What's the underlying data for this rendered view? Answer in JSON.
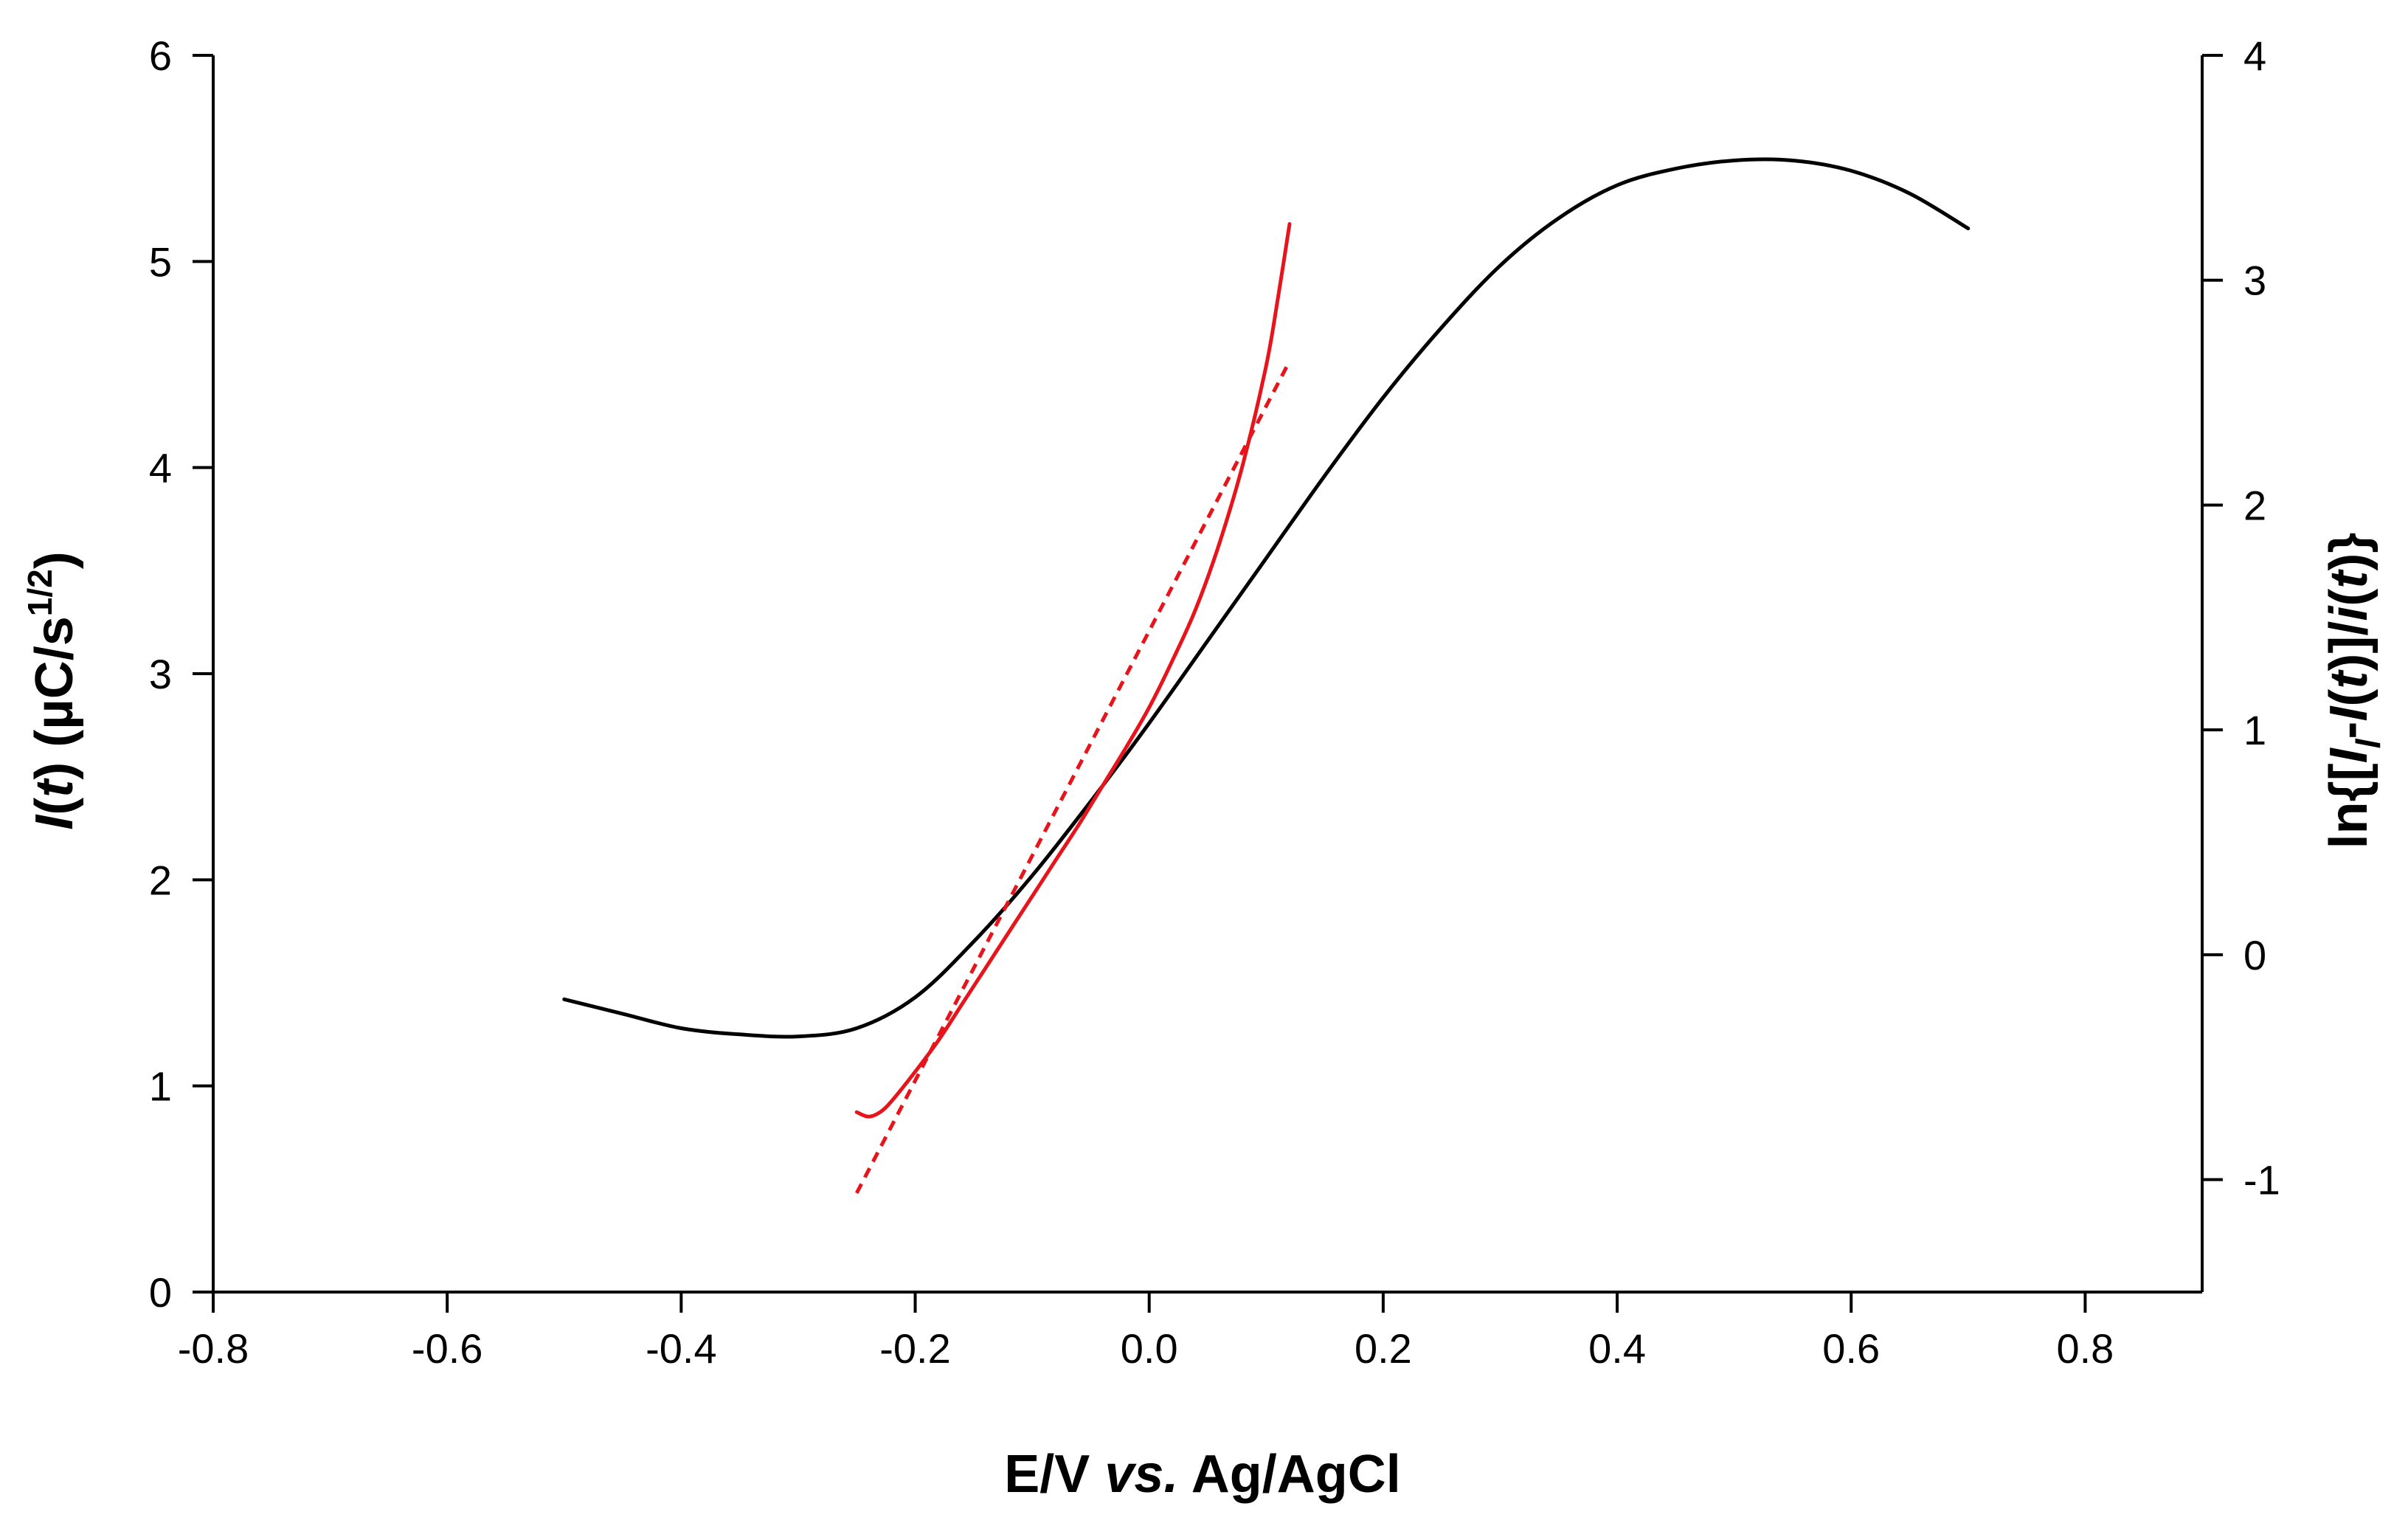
{
  "chart_data": {
    "type": "line",
    "xlabel": {
      "pre": "E/V ",
      "italic": "vs.",
      "post": " Ag/AgCl"
    },
    "ylabel_left": {
      "I": "I",
      "t": "t",
      "unit": " (µC/s",
      "sup": "1/2",
      "close": ")"
    },
    "ylabel_right": {
      "a": "ln{[",
      "b": "I",
      "c": "l",
      "d": "-",
      "e": "I",
      "f": "(",
      "g": "t",
      "h": ")]/",
      "i": "i",
      "j": "(",
      "k": "t",
      "l": ")}"
    },
    "xlim": [
      -0.8,
      0.9
    ],
    "ylim_left": [
      0,
      6
    ],
    "ylim_right": [
      -1.5,
      4
    ],
    "x_ticks": [
      -0.8,
      -0.6,
      -0.4,
      -0.2,
      0.0,
      0.2,
      0.4,
      0.6,
      0.8
    ],
    "x_tick_labels": [
      "-0.8",
      "-0.6",
      "-0.4",
      "-0.2",
      "0.0",
      "0.2",
      "0.4",
      "0.6",
      "0.8"
    ],
    "y_left_ticks": [
      0,
      1,
      2,
      3,
      4,
      5,
      6
    ],
    "y_left_tick_labels": [
      "0",
      "1",
      "2",
      "3",
      "4",
      "5",
      "6"
    ],
    "y_right_ticks": [
      -1,
      0,
      1,
      2,
      3,
      4
    ],
    "y_right_tick_labels": [
      "-1",
      "0",
      "1",
      "2",
      "3",
      "4"
    ],
    "colors": {
      "black": "#000000",
      "red": "#e8141b"
    },
    "series": [
      {
        "axis": "left",
        "color": "#000000",
        "style": "solid",
        "x": [
          -0.5,
          -0.45,
          -0.4,
          -0.35,
          -0.3,
          -0.25,
          -0.2,
          -0.15,
          -0.1,
          -0.05,
          0.0,
          0.05,
          0.1,
          0.15,
          0.2,
          0.25,
          0.3,
          0.35,
          0.4,
          0.45,
          0.5,
          0.55,
          0.6,
          0.65,
          0.7
        ],
        "y": [
          1.42,
          1.35,
          1.28,
          1.25,
          1.24,
          1.28,
          1.43,
          1.7,
          2.02,
          2.38,
          2.76,
          3.16,
          3.56,
          3.96,
          4.34,
          4.68,
          4.98,
          5.21,
          5.37,
          5.45,
          5.49,
          5.49,
          5.44,
          5.33,
          5.16
        ]
      },
      {
        "axis": "right",
        "color": "#e8141b",
        "style": "solid",
        "x": [
          -0.25,
          -0.24,
          -0.23,
          -0.22,
          -0.2,
          -0.18,
          -0.16,
          -0.14,
          -0.12,
          -0.1,
          -0.08,
          -0.06,
          -0.04,
          -0.02,
          0.0,
          0.02,
          0.04,
          0.06,
          0.08,
          0.1,
          0.11,
          0.12
        ],
        "y": [
          -0.7,
          -0.72,
          -0.7,
          -0.65,
          -0.52,
          -0.38,
          -0.22,
          -0.06,
          0.1,
          0.26,
          0.42,
          0.58,
          0.75,
          0.92,
          1.1,
          1.31,
          1.54,
          1.83,
          2.18,
          2.62,
          2.92,
          3.25
        ]
      },
      {
        "axis": "right",
        "color": "#e8141b",
        "style": "dashed",
        "x": [
          -0.25,
          0.12
        ],
        "y": [
          -1.06,
          2.64
        ]
      }
    ]
  }
}
